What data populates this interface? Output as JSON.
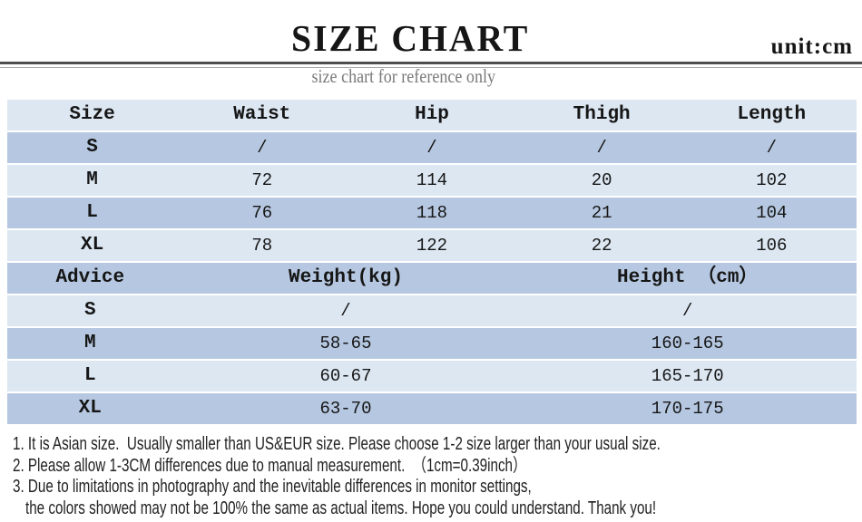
{
  "header": {
    "title": "SIZE CHART",
    "unit": "unit:cm",
    "subtitle": "size chart for reference only"
  },
  "colors": {
    "row_light": "#dce7f2",
    "row_dark": "#b6c8e1",
    "subtitle_gray": "#7a7a7a",
    "divider_dark": "#4e4e4e",
    "divider_light": "#a9a9a9",
    "page_bg": "#ffffff",
    "text_main": "#1b1b1b"
  },
  "size_table": {
    "columns": [
      "Size",
      "Waist",
      "Hip",
      "Thigh",
      "Length"
    ],
    "rows": [
      {
        "size": "S",
        "waist": "/",
        "hip": "/",
        "thigh": "/",
        "length": "/"
      },
      {
        "size": "M",
        "waist": "72",
        "hip": "114",
        "thigh": "20",
        "length": "102"
      },
      {
        "size": "L",
        "waist": "76",
        "hip": "118",
        "thigh": "21",
        "length": "104"
      },
      {
        "size": "XL",
        "waist": "78",
        "hip": "122",
        "thigh": "22",
        "length": "106"
      }
    ]
  },
  "advice_table": {
    "columns": [
      "Advice",
      "Weight(kg)",
      "Height （cm）"
    ],
    "rows": [
      {
        "size": "S",
        "weight": "/",
        "height": "/"
      },
      {
        "size": "M",
        "weight": "58-65",
        "height": "160-165"
      },
      {
        "size": "L",
        "weight": "60-67",
        "height": "165-170"
      },
      {
        "size": "XL",
        "weight": "63-70",
        "height": "170-175"
      }
    ]
  },
  "notes": [
    "1. It is Asian size.  Usually smaller than US&EUR size. Please choose 1-2 size larger than your usual size.",
    "2. Please allow 1-3CM differences due to manual measurement.  （1cm=0.39inch）",
    "3. Due to limitations in photography and the inevitable differences in monitor settings,",
    "the colors showed may not be 100% the same as actual items. Hope you could understand. Thank you!"
  ]
}
